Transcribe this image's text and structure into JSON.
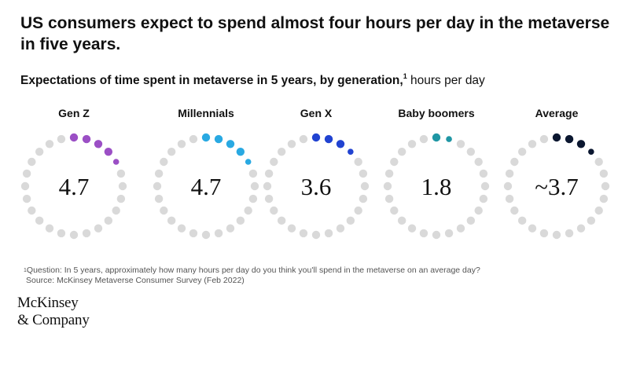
{
  "title": "US consumers expect to spend almost four hours per day in the metaverse in five years.",
  "subtitle": {
    "bold": "Expectations of time spent in metaverse in 5 years, by generation,",
    "footnote_marker": "1",
    "unit": " hours per day"
  },
  "chart_data": {
    "type": "radial-dot",
    "title": "Expectations of time spent in metaverse in 5 years, by generation",
    "unit": "hours per day",
    "scale_max_hours": 24,
    "dots_total": 24,
    "categories": [
      "Gen Z",
      "Millennials",
      "Gen X",
      "Baby boomers",
      "Average"
    ],
    "values": [
      4.7,
      4.7,
      3.6,
      1.8,
      3.7
    ],
    "display_values": [
      "4.7",
      "4.7",
      "3.6",
      "1.8",
      "~3.7"
    ],
    "colors": [
      "#9B4FC5",
      "#29A9E2",
      "#2143D1",
      "#1F96A4",
      "#0B1730"
    ],
    "empty_color": "#D9D9D9"
  },
  "footnote": {
    "marker": "1",
    "question": "Question: In 5 years, approximately how many hours per day do you think you'll spend in the metaverse on an average day?",
    "source": "Source: McKinsey Metaverse Consumer Survey (Feb 2022)"
  },
  "logo": {
    "line1": "McKinsey",
    "line2": "& Company"
  }
}
